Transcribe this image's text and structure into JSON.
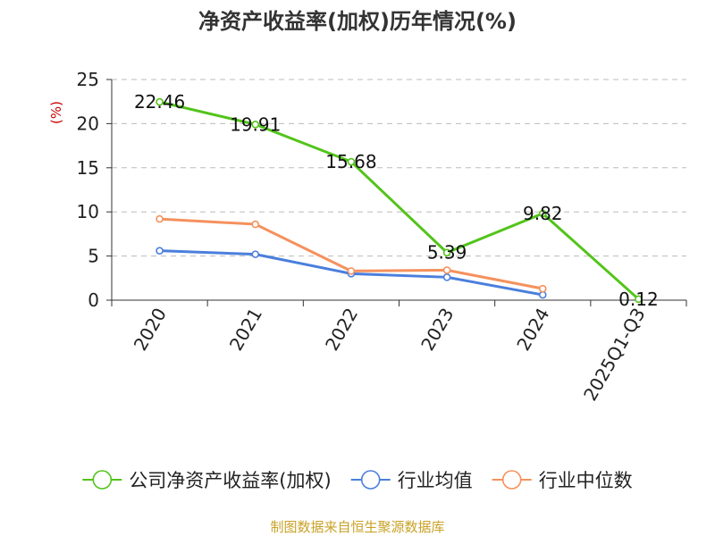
{
  "chart_data": {
    "type": "line",
    "title": "净资产收益率(加权)历年情况(%)",
    "ylabel": "(%)",
    "xlabel": "",
    "categories": [
      "2020",
      "2021",
      "2022",
      "2023",
      "2024",
      "2025Q1-Q3"
    ],
    "ylim": [
      0,
      25
    ],
    "yticks": [
      0,
      5,
      10,
      15,
      20,
      25
    ],
    "grid": true,
    "legend_position": "bottom",
    "series": [
      {
        "name": "公司净资产收益率(加权)",
        "color": "#52c41a",
        "values": [
          22.46,
          19.91,
          15.68,
          5.39,
          9.82,
          0.12
        ],
        "labels": [
          "22.46",
          "19.91",
          "15.68",
          "5.39",
          "9.82",
          "0.12"
        ]
      },
      {
        "name": "行业均值",
        "color": "#4a7fdc",
        "values": [
          5.6,
          5.2,
          3.0,
          2.6,
          0.6,
          null
        ]
      },
      {
        "name": "行业中位数",
        "color": "#f5915d",
        "values": [
          9.2,
          8.6,
          3.3,
          3.4,
          1.3,
          null
        ]
      }
    ]
  },
  "source": "制图数据来自恒生聚源数据库"
}
